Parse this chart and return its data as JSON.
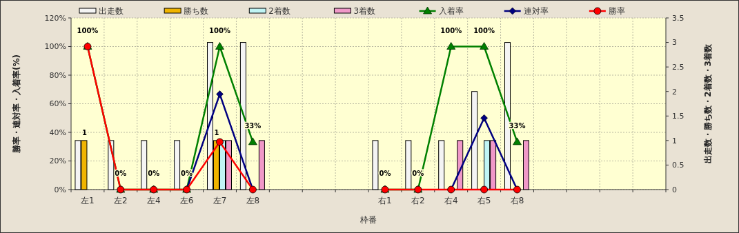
{
  "chart_data": {
    "type": "bar",
    "xlabel": "枠番",
    "ylabel": "勝率・連対率・入着率(%)",
    "y2label": "出走数・勝ち数・2着数・3着数",
    "categories": [
      "左1",
      "左2",
      "左4",
      "左6",
      "左7",
      "左8",
      null,
      null,
      null,
      "右1",
      "右2",
      "右4",
      "右5",
      "右8",
      null,
      null,
      null,
      null
    ],
    "series": [
      {
        "name": "出走数",
        "axis": "y2",
        "color": "#f4f4f4",
        "values": [
          1,
          1,
          1,
          1,
          3,
          3,
          null,
          null,
          null,
          1,
          1,
          1,
          2,
          3,
          null,
          null,
          null,
          null
        ]
      },
      {
        "name": "勝ち数",
        "axis": "y2",
        "color": "#f0b400",
        "values": [
          1,
          0,
          0,
          0,
          1,
          0,
          null,
          null,
          null,
          0,
          0,
          0,
          0,
          0,
          null,
          null,
          null,
          null
        ],
        "value_labels": [
          "1",
          null,
          null,
          null,
          "1",
          null,
          null,
          null,
          null,
          null,
          null,
          null,
          null,
          null,
          null,
          null,
          null,
          null
        ]
      },
      {
        "name": "2着数",
        "axis": "y2",
        "color": "#c0f4f4",
        "values": [
          0,
          0,
          0,
          0,
          1,
          0,
          null,
          null,
          null,
          0,
          0,
          0,
          1,
          0,
          null,
          null,
          null,
          null
        ]
      },
      {
        "name": "3着数",
        "axis": "y2",
        "color": "#f098c8",
        "values": [
          0,
          0,
          0,
          0,
          1,
          1,
          null,
          null,
          null,
          0,
          0,
          1,
          1,
          1,
          null,
          null,
          null,
          null
        ]
      },
      {
        "name": "入着率",
        "type": "line",
        "marker": "triangle",
        "color": "#008000",
        "values": [
          100,
          0,
          0,
          0,
          100,
          33.3,
          null,
          null,
          null,
          0,
          0,
          100,
          100,
          33.3,
          null,
          null,
          null,
          null
        ],
        "value_labels": [
          "100%",
          "0%",
          "0%",
          "0%",
          "100%",
          "33%",
          null,
          null,
          null,
          "0%",
          "0%",
          "100%",
          "100%",
          "33%",
          null,
          null,
          null,
          null
        ]
      },
      {
        "name": "連対率",
        "type": "line",
        "marker": "diamond",
        "color": "#000080",
        "values": [
          null,
          null,
          null,
          0,
          66.7,
          0,
          null,
          null,
          null,
          null,
          null,
          0,
          50,
          0,
          null,
          null,
          null,
          null
        ]
      },
      {
        "name": "勝率",
        "type": "line",
        "marker": "circle",
        "color": "#ff0000",
        "values": [
          100,
          0,
          0,
          0,
          33.3,
          0,
          null,
          null,
          null,
          0,
          0,
          0,
          0,
          0,
          null,
          null,
          null,
          null
        ]
      }
    ],
    "ylim": [
      0,
      120
    ],
    "yticks": [
      {
        "value": 0,
        "label": "0%"
      },
      {
        "value": 20,
        "label": "20%"
      },
      {
        "value": 40,
        "label": "40%"
      },
      {
        "value": 60,
        "label": "60%"
      },
      {
        "value": 80,
        "label": "80%"
      },
      {
        "value": 100,
        "label": "100%"
      },
      {
        "value": 120,
        "label": "120%"
      }
    ],
    "y2lim": [
      0,
      3.5
    ],
    "y2ticks": [
      0,
      0.5,
      1,
      1.5,
      2,
      2.5,
      3,
      3.5
    ],
    "grid": true,
    "legend": "top"
  }
}
